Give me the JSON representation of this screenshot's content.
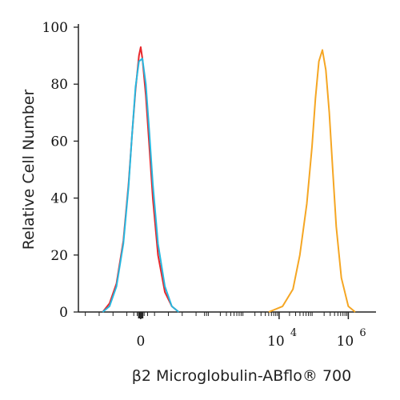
{
  "chart_data": {
    "type": "line",
    "title": "",
    "xlabel": "β2 Microglobulin-ABflo® 700",
    "ylabel": "Relative Cell Number",
    "ylim": [
      0,
      100
    ],
    "y_ticks": [
      "0",
      "20",
      "40",
      "60",
      "80",
      "100"
    ],
    "x_ticks": [
      {
        "x": 0,
        "label": "0",
        "exp": ""
      },
      {
        "x": 4,
        "label": "10",
        "exp": "4"
      },
      {
        "x": 6,
        "label": "10",
        "exp": "6"
      }
    ],
    "x_scale": "biexponential (log10 units)",
    "xlim": [
      -1.8,
      6.8
    ],
    "grid": false,
    "legend": "none",
    "series": [
      {
        "color": "#e8262a",
        "x": [
          -1.1,
          -0.9,
          -0.7,
          -0.5,
          -0.35,
          -0.25,
          -0.15,
          -0.05,
          0.0,
          0.05,
          0.15,
          0.25,
          0.35,
          0.5,
          0.7,
          0.9,
          1.1
        ],
        "y": [
          0,
          3,
          10,
          25,
          45,
          62,
          78,
          90,
          93,
          89,
          76,
          58,
          40,
          20,
          7,
          2,
          0
        ]
      },
      {
        "color": "#27b8e0",
        "x": [
          -1.1,
          -0.9,
          -0.7,
          -0.5,
          -0.35,
          -0.25,
          -0.15,
          -0.05,
          0.05,
          0.15,
          0.25,
          0.35,
          0.5,
          0.7,
          0.9,
          1.1
        ],
        "y": [
          0,
          2,
          9,
          24,
          44,
          62,
          79,
          88,
          89,
          80,
          63,
          45,
          24,
          9,
          2,
          0
        ]
      },
      {
        "color": "#f5a623",
        "x": [
          3.7,
          4.1,
          4.4,
          4.6,
          4.8,
          4.95,
          5.05,
          5.15,
          5.25,
          5.35,
          5.45,
          5.55,
          5.65,
          5.8,
          6.0,
          6.2
        ],
        "y": [
          0,
          2,
          8,
          20,
          38,
          58,
          75,
          88,
          92,
          85,
          70,
          50,
          30,
          12,
          2,
          0
        ]
      }
    ]
  }
}
